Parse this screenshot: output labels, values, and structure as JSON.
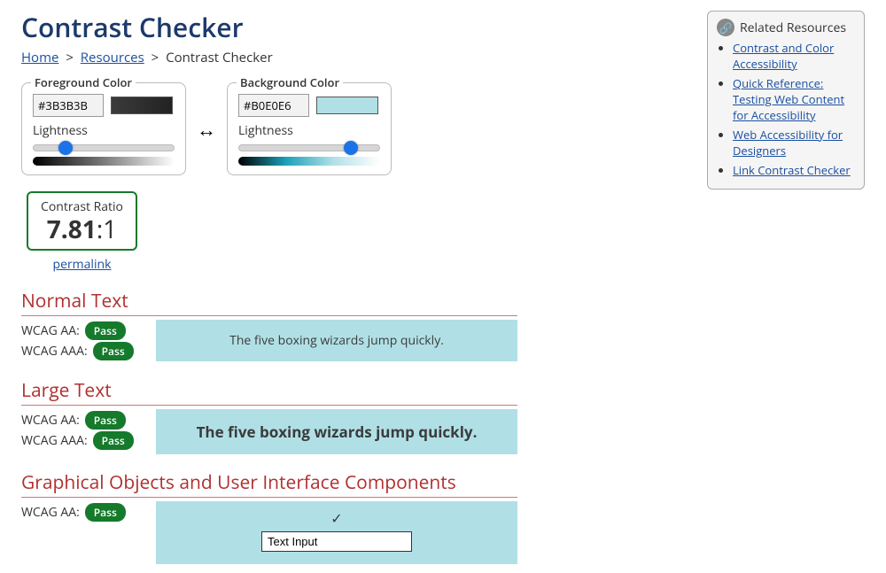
{
  "title": "Contrast Checker",
  "breadcrumb": {
    "home": "Home",
    "resources": "Resources",
    "current": "Contrast Checker"
  },
  "foreground": {
    "legend": "Foreground Color",
    "hex": "#3B3B3B",
    "swatch_fill": "#3b3b3b",
    "swatch_gradient": "linear-gradient(90deg,#3b3b3b,#222)",
    "lightness_label": "Lightness",
    "slider_percent": 23,
    "gradient_css": "linear-gradient(90deg,#000000,#7a7a7a,#ffffff)"
  },
  "background": {
    "legend": "Background Color",
    "hex": "#B0E0E6",
    "swatch_fill": "#b0e0e6",
    "lightness_label": "Lightness",
    "slider_percent": 80,
    "gradient_css": "linear-gradient(90deg,#000000,#1aa0b8,#b0e0e6,#ffffff)"
  },
  "swap_glyph": "↔",
  "ratio": {
    "label": "Contrast Ratio",
    "value": "7.81",
    "suffix": ":1",
    "permalink": "permalink"
  },
  "sample_text": "The five boxing wizards jump quickly.",
  "sample_fg": "#3b3b3b",
  "sample_bg": "#b0e0e6",
  "sections": {
    "normal": {
      "title": "Normal Text",
      "aa_label": "WCAG AA:",
      "aa_badge": "Pass",
      "aaa_label": "WCAG AAA:",
      "aaa_badge": "Pass"
    },
    "large": {
      "title": "Large Text",
      "aa_label": "WCAG AA:",
      "aa_badge": "Pass",
      "aaa_label": "WCAG AAA:",
      "aaa_badge": "Pass"
    },
    "ui": {
      "title": "Graphical Objects and User Interface Components",
      "aa_label": "WCAG AA:",
      "aa_badge": "Pass",
      "check_glyph": "✓",
      "input_value": "Text Input"
    }
  },
  "sidebar": {
    "heading": "Related Resources",
    "link_glyph": "🔗",
    "links": [
      "Contrast and Color Accessibility",
      "Quick Reference: Testing Web Content for Accessibility",
      "Web Accessibility for Designers",
      "Link Contrast Checker"
    ]
  }
}
